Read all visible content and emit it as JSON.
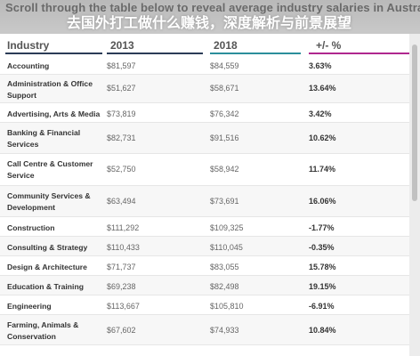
{
  "header": {
    "title": "Scroll through the table below to reveal average industry salaries in Australia",
    "overlay_title": "去国外打工做什么赚钱，深度解析与前景展望"
  },
  "table": {
    "columns": [
      "Industry",
      "2013",
      "2018",
      "+/- %"
    ],
    "column_colors": [
      "#2b3c57",
      "#2b3c57",
      "#2b8e9b",
      "#b0278f"
    ],
    "rows": [
      {
        "industry": "Accounting",
        "v2013": "$81,597",
        "v2018": "$84,559",
        "pct": "3.63%"
      },
      {
        "industry": "Administration & Office Support",
        "v2013": "$51,627",
        "v2018": "$58,671",
        "pct": "13.64%"
      },
      {
        "industry": "Advertising, Arts & Media",
        "v2013": "$73,819",
        "v2018": "$76,342",
        "pct": "3.42%"
      },
      {
        "industry": "Banking & Financial Services",
        "v2013": "$82,731",
        "v2018": "$91,516",
        "pct": "10.62%"
      },
      {
        "industry": "Call Centre & Customer Service",
        "v2013": "$52,750",
        "v2018": "$58,942",
        "pct": "11.74%"
      },
      {
        "industry": "Community Services & Development",
        "v2013": "$63,494",
        "v2018": "$73,691",
        "pct": "16.06%"
      },
      {
        "industry": "Construction",
        "v2013": "$111,292",
        "v2018": "$109,325",
        "pct": "-1.77%"
      },
      {
        "industry": "Consulting & Strategy",
        "v2013": "$110,433",
        "v2018": "$110,045",
        "pct": "-0.35%"
      },
      {
        "industry": "Design & Architecture",
        "v2013": "$71,737",
        "v2018": "$83,055",
        "pct": "15.78%"
      },
      {
        "industry": "Education & Training",
        "v2013": "$69,238",
        "v2018": "$82,498",
        "pct": "19.15%"
      },
      {
        "industry": "Engineering",
        "v2013": "$113,667",
        "v2018": "$105,810",
        "pct": "-6.91%"
      },
      {
        "industry": "Farming, Animals & Conservation",
        "v2013": "$67,602",
        "v2018": "$74,933",
        "pct": "10.84%"
      }
    ]
  }
}
